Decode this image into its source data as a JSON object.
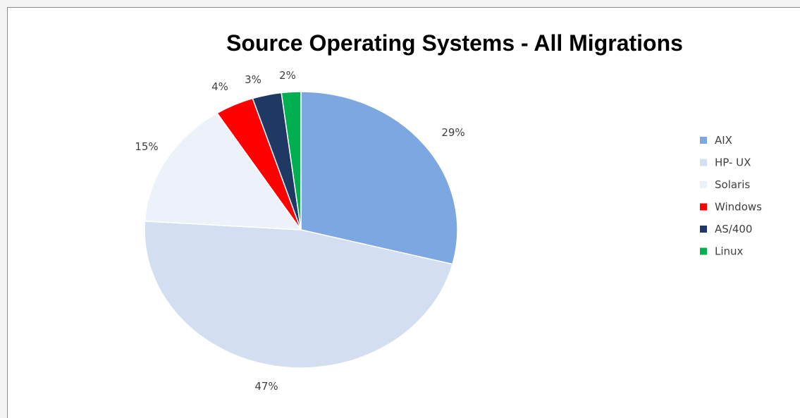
{
  "chart_data": {
    "type": "pie",
    "title": "Source Operating Systems - All Migrations",
    "slices": [
      {
        "label": "AIX",
        "value": 29,
        "display": "29%",
        "color": "#7da7e0"
      },
      {
        "label": "HP- UX",
        "value": 47,
        "display": "47%",
        "color": "#d3dff1"
      },
      {
        "label": "Solaris",
        "value": 15,
        "display": "15%",
        "color": "#edf1f9"
      },
      {
        "label": "Windows",
        "value": 4,
        "display": "4%",
        "color": "#ff0000"
      },
      {
        "label": "AS/400",
        "value": 3,
        "display": "3%",
        "color": "#1f3864"
      },
      {
        "label": "Linux",
        "value": 2,
        "display": "2%",
        "color": "#00b050"
      }
    ],
    "start_angle_deg": 0,
    "direction": "clockwise",
    "legend_position": "right",
    "data_labels": "outside"
  }
}
